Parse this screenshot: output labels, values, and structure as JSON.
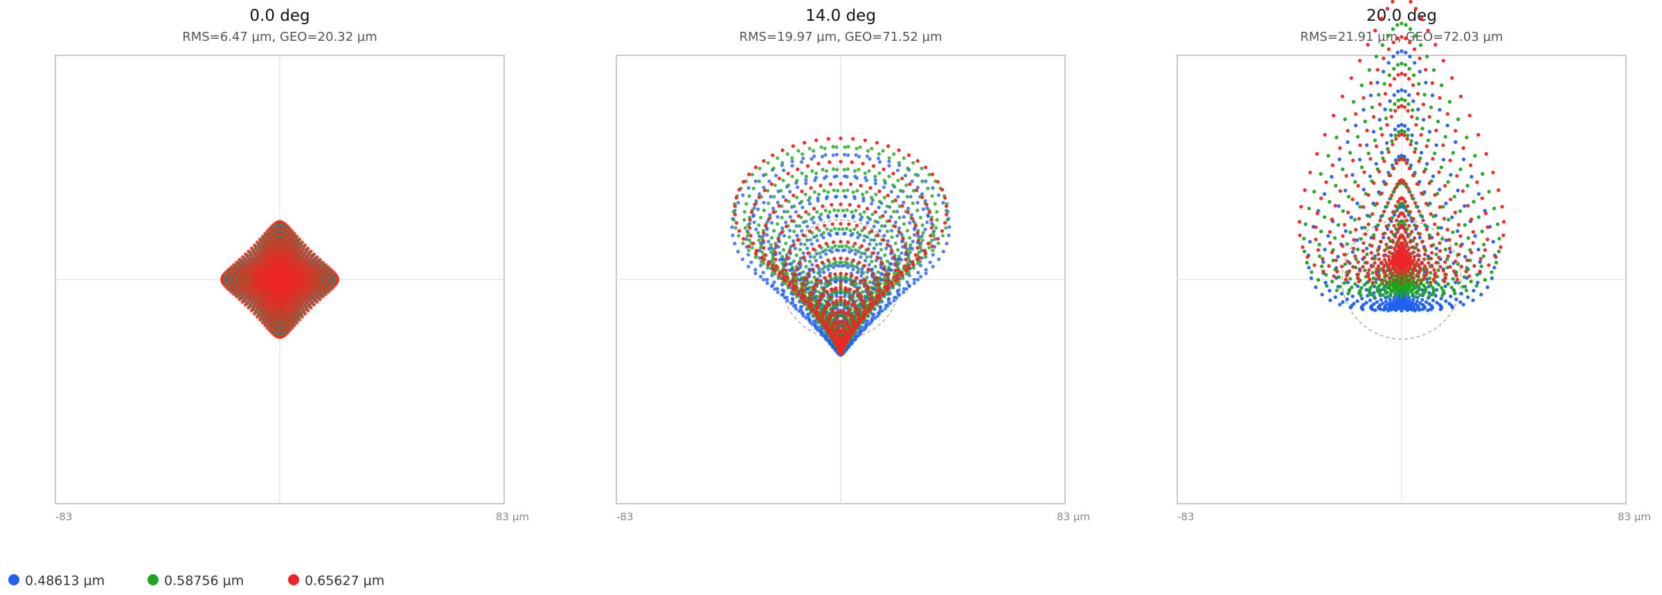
{
  "panels": [
    {
      "title": "0.0 deg",
      "subtitle": "RMS=6.47 µm, GEO=20.32 µm",
      "axis_min": "-83",
      "axis_max": "83 µm"
    },
    {
      "title": "14.0 deg",
      "subtitle": "RMS=19.97 µm, GEO=71.52 µm",
      "axis_min": "-83",
      "axis_max": "83 µm"
    },
    {
      "title": "20.0 deg",
      "subtitle": "RMS=21.91 µm, GEO=72.03 µm",
      "axis_min": "-83",
      "axis_max": "83 µm"
    }
  ],
  "legend": [
    {
      "label": "0.48613 µm",
      "color": "#2060ee"
    },
    {
      "label": "0.58756 µm",
      "color": "#1ea51e"
    },
    {
      "label": "0.65627 µm",
      "color": "#f02525"
    }
  ]
}
